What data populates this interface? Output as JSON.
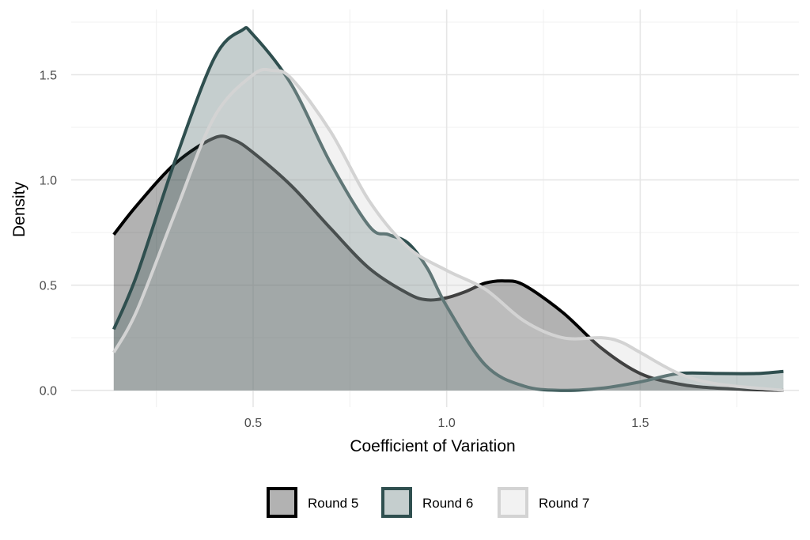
{
  "chart_data": {
    "type": "area",
    "xlabel": "Coefficient of Variation",
    "ylabel": "Density",
    "xlim": [
      0.03,
      1.91
    ],
    "ylim": [
      -0.08,
      1.81
    ],
    "x_ticks": [
      "0.5",
      "1.0",
      "1.5"
    ],
    "x_tick_values": [
      0.5,
      1.0,
      1.5
    ],
    "y_ticks": [
      "0.0",
      "0.5",
      "1.0",
      "1.5"
    ],
    "y_tick_values": [
      0,
      0.5,
      1.0,
      1.5
    ],
    "grid": true,
    "legend_position": "bottom",
    "series": [
      {
        "name": "Round 5",
        "line": "#000000",
        "fill": "#000000",
        "fill_opacity": 0.3,
        "x": [
          0.14,
          0.2,
          0.3,
          0.4,
          0.45,
          0.5,
          0.6,
          0.7,
          0.8,
          0.9,
          0.95,
          1.0,
          1.05,
          1.1,
          1.15,
          1.2,
          1.3,
          1.4,
          1.5,
          1.6,
          1.7,
          1.87
        ],
        "y": [
          0.74,
          0.88,
          1.08,
          1.2,
          1.19,
          1.13,
          0.97,
          0.77,
          0.58,
          0.46,
          0.43,
          0.44,
          0.47,
          0.51,
          0.52,
          0.5,
          0.37,
          0.2,
          0.08,
          0.03,
          0.01,
          0.0
        ]
      },
      {
        "name": "Round 6",
        "line": "#2F4F4F",
        "fill": "#2F4F4F",
        "fill_opacity": 0.28,
        "x": [
          0.14,
          0.2,
          0.3,
          0.4,
          0.47,
          0.5,
          0.6,
          0.7,
          0.8,
          0.85,
          0.9,
          0.95,
          1.0,
          1.1,
          1.2,
          1.3,
          1.4,
          1.5,
          1.6,
          1.7,
          1.8,
          1.87
        ],
        "y": [
          0.29,
          0.55,
          1.1,
          1.58,
          1.71,
          1.69,
          1.45,
          1.08,
          0.78,
          0.74,
          0.7,
          0.58,
          0.4,
          0.12,
          0.02,
          0.0,
          0.01,
          0.04,
          0.08,
          0.08,
          0.08,
          0.09
        ]
      },
      {
        "name": "Round 7",
        "line": "#D3D3D3",
        "fill": "#D3D3D3",
        "fill_opacity": 0.3,
        "x": [
          0.14,
          0.2,
          0.3,
          0.4,
          0.5,
          0.55,
          0.6,
          0.7,
          0.8,
          0.9,
          1.0,
          1.1,
          1.2,
          1.3,
          1.4,
          1.45,
          1.5,
          1.6,
          1.7,
          1.87
        ],
        "y": [
          0.18,
          0.38,
          0.85,
          1.3,
          1.5,
          1.52,
          1.48,
          1.23,
          0.9,
          0.68,
          0.57,
          0.48,
          0.33,
          0.25,
          0.25,
          0.23,
          0.18,
          0.08,
          0.03,
          0.0
        ]
      }
    ]
  }
}
